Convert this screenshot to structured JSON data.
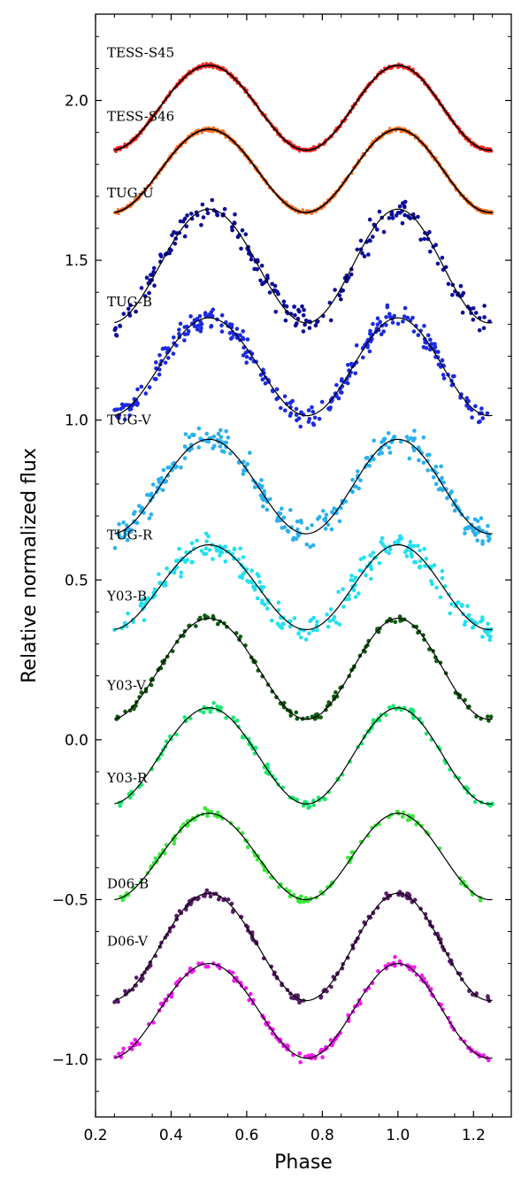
{
  "chart_data": {
    "type": "scatter",
    "title": "",
    "xlabel": "Phase",
    "ylabel": "Relative normalized flux",
    "xlim": [
      0.2,
      1.3
    ],
    "ylim": [
      -1.18,
      2.27
    ],
    "x_ticks": [
      0.2,
      0.4,
      0.6,
      0.8,
      1.0,
      1.2
    ],
    "x_tick_labels": [
      "0.2",
      "0.4",
      "0.6",
      "0.8",
      "1.0",
      "1.2"
    ],
    "y_ticks": [
      -1.0,
      -0.5,
      0.0,
      0.5,
      1.0,
      1.5,
      2.0
    ],
    "y_tick_labels": [
      "−1.0",
      "−0.5",
      "0.0",
      "0.5",
      "1.0",
      "1.5",
      "2.0"
    ],
    "phase_range": [
      0.25,
      1.25
    ],
    "grid": false,
    "legend": "inline labels at left",
    "fit_color": "#000000",
    "series": [
      {
        "name": "TESS-S45",
        "color": "#ff2a1a",
        "start": 2.1,
        "primary_min": 1.87,
        "max": 2.11,
        "secondary_min": 1.82,
        "scatter": 0.006,
        "density": 90,
        "label_y": 2.15
      },
      {
        "name": "TESS-S46",
        "color": "#ff6a1a",
        "start": 1.9,
        "primary_min": 1.67,
        "max": 1.91,
        "secondary_min": 1.63,
        "scatter": 0.006,
        "density": 90,
        "label_y": 1.95
      },
      {
        "name": "TUG-U",
        "color": "#0a0a9a",
        "start": 1.66,
        "primary_min": 1.34,
        "max": 1.66,
        "secondary_min": 1.27,
        "scatter": 0.045,
        "density": 22,
        "label_y": 1.71
      },
      {
        "name": "TUG-B",
        "color": "#1a2ae0",
        "start": 1.32,
        "primary_min": 1.05,
        "max": 1.32,
        "secondary_min": 0.98,
        "scatter": 0.035,
        "density": 30,
        "label_y": 1.37
      },
      {
        "name": "TUG-V",
        "color": "#2ab0ee",
        "start": 0.94,
        "primary_min": 0.67,
        "max": 0.94,
        "secondary_min": 0.62,
        "scatter": 0.045,
        "density": 30,
        "label_y": 1.0
      },
      {
        "name": "TUG-R",
        "color": "#20e0ee",
        "start": 0.6,
        "primary_min": 0.37,
        "max": 0.61,
        "secondary_min": 0.32,
        "scatter": 0.045,
        "density": 26,
        "label_y": 0.64
      },
      {
        "name": "Y03-B",
        "color": "#0f5a0f",
        "start": 0.38,
        "primary_min": 0.1,
        "max": 0.38,
        "secondary_min": 0.03,
        "scatter": 0.014,
        "density": 14,
        "label_y": 0.45
      },
      {
        "name": "Y03-V",
        "color": "#1ae870",
        "start": 0.1,
        "primary_min": -0.17,
        "max": 0.1,
        "secondary_min": -0.23,
        "scatter": 0.014,
        "density": 14,
        "label_y": 0.17
      },
      {
        "name": "Y03-R",
        "color": "#3ae83a",
        "start": -0.23,
        "primary_min": -0.48,
        "max": -0.23,
        "secondary_min": -0.52,
        "scatter": 0.014,
        "density": 14,
        "label_y": -0.12
      },
      {
        "name": "D06-B",
        "color": "#5a1a6a",
        "start": -0.49,
        "primary_min": -0.78,
        "max": -0.48,
        "secondary_min": -0.85,
        "scatter": 0.012,
        "density": 18,
        "label_y": -0.45
      },
      {
        "name": "D06-V",
        "color": "#ee1aee",
        "start": -0.7,
        "primary_min": -0.96,
        "max": -0.7,
        "secondary_min": -1.03,
        "scatter": 0.014,
        "density": 18,
        "label_y": -0.63
      }
    ]
  }
}
